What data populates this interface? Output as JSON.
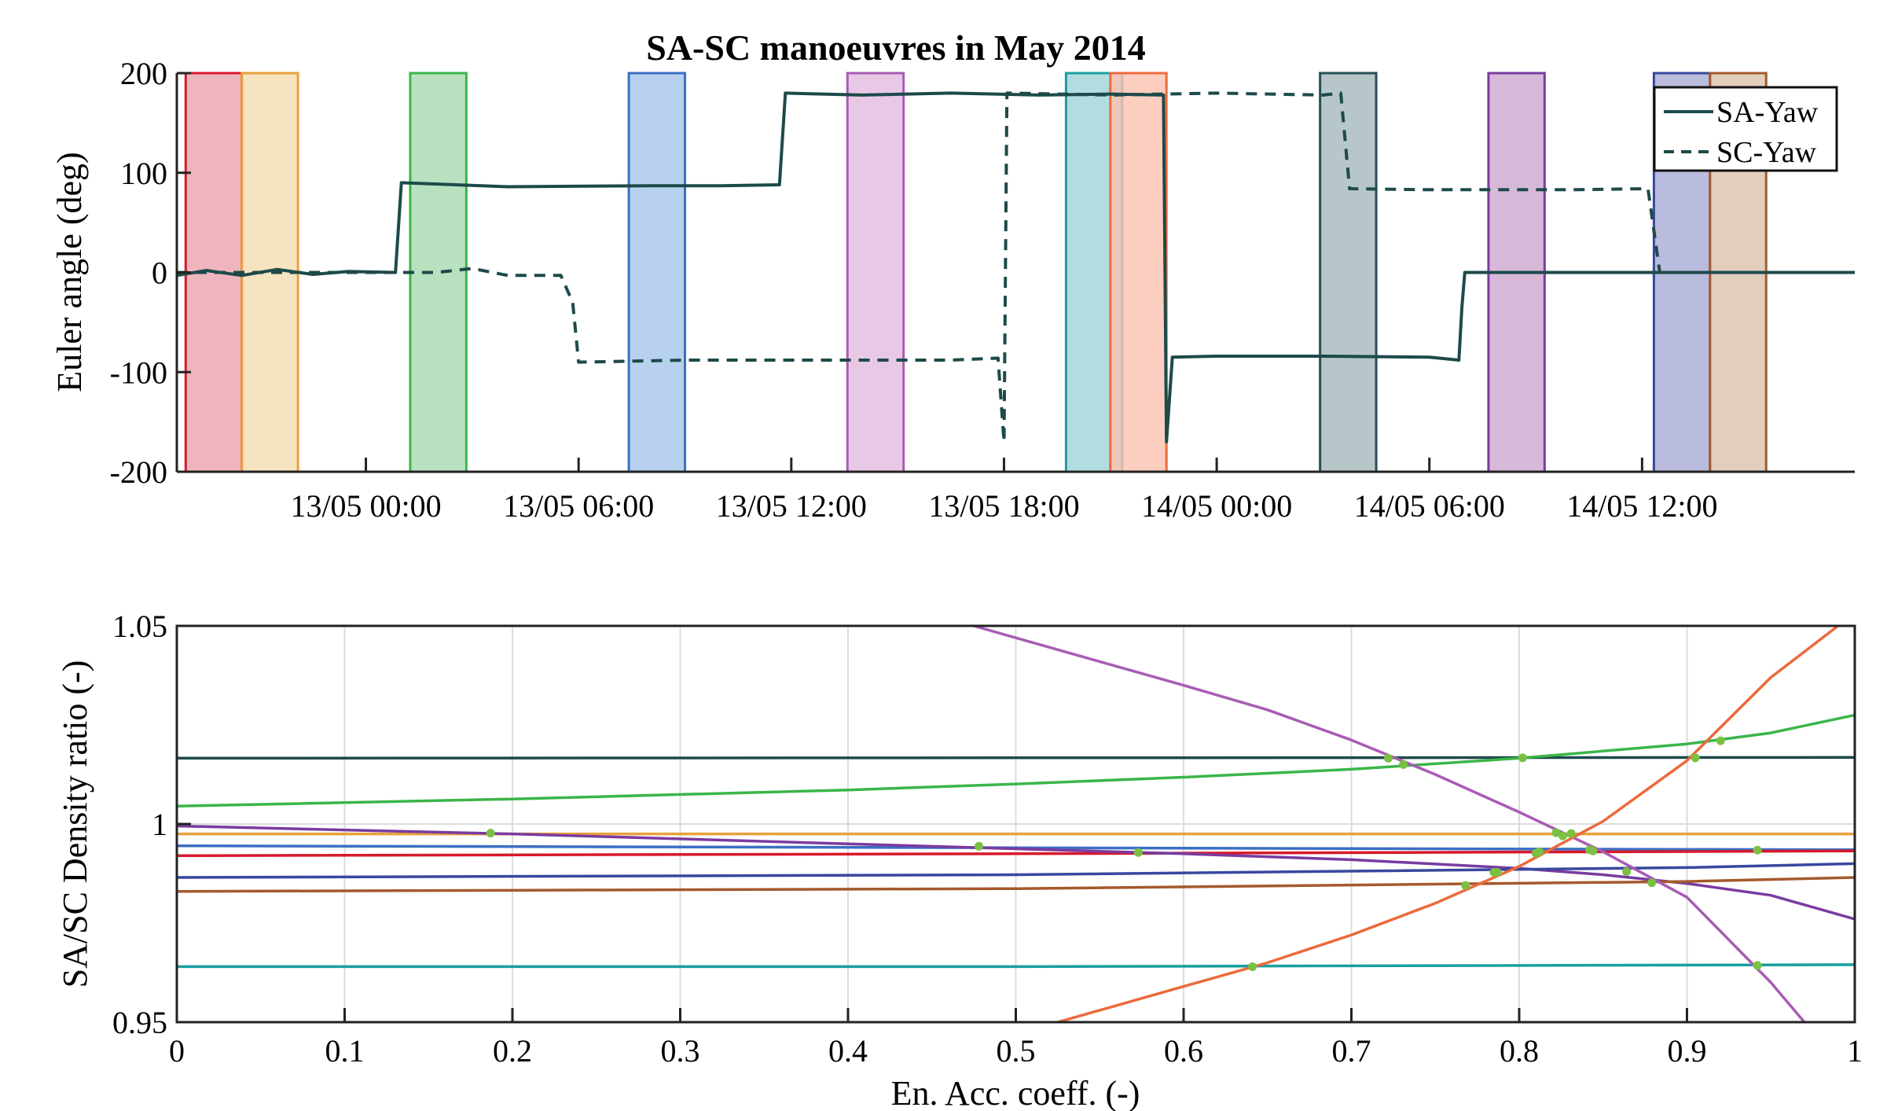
{
  "chart_data": [
    {
      "type": "line",
      "title": "SA-SC manoeuvres in May 2014",
      "xlabel": "",
      "ylabel": "Euler angle (deg)",
      "xlim": [
        "12/05 18:40",
        "14/05 18:00"
      ],
      "ylim": [
        -200,
        200
      ],
      "yticks": [
        -200,
        -100,
        0,
        100,
        200
      ],
      "xticks": [
        "13/05 00:00",
        "13/05 06:00",
        "13/05 12:00",
        "13/05 18:00",
        "14/05 00:00",
        "14/05 06:00",
        "14/05 12:00"
      ],
      "grid": false,
      "legend_position": "top-right",
      "legend": [
        "SA-Yaw",
        "SC-Yaw"
      ],
      "manoeuvre_windows": [
        {
          "start": "12/05 18:55",
          "end": "12/05 20:30",
          "color": "#d7192b",
          "fill": "#eaa2ae"
        },
        {
          "start": "12/05 20:30",
          "end": "12/05 22:05",
          "color": "#e8a23b",
          "fill": "#f4dcb0"
        },
        {
          "start": "13/05 01:15",
          "end": "13/05 02:50",
          "color": "#3bb54a",
          "fill": "#a8d9b0"
        },
        {
          "start": "13/05 07:25",
          "end": "13/05 09:00",
          "color": "#3d6fc4",
          "fill": "#a5c6ea"
        },
        {
          "start": "13/05 13:35",
          "end": "13/05 15:10",
          "color": "#a85cb4",
          "fill": "#e2bade"
        },
        {
          "start": "13/05 19:45",
          "end": "13/05 21:20",
          "color": "#1a9ea0",
          "fill": "#9fd5d8"
        },
        {
          "start": "13/05 21:00",
          "end": "13/05 22:35",
          "color": "#ec6a3c",
          "fill": "#fbc2b0"
        },
        {
          "start": "14/05 02:55",
          "end": "14/05 04:30",
          "color": "#274d55",
          "fill": "#a4b8bb"
        },
        {
          "start": "14/05 07:40",
          "end": "14/05 09:15",
          "color": "#7a3ba0",
          "fill": "#cda6cf"
        },
        {
          "start": "14/05 12:20",
          "end": "14/05 13:55",
          "color": "#39479e",
          "fill": "#a9abd5"
        },
        {
          "start": "14/05 13:55",
          "end": "14/05 15:30",
          "color": "#a45a2c",
          "fill": "#dcc1ad"
        }
      ],
      "series": [
        {
          "name": "SA-Yaw",
          "style": "solid",
          "color": "#1d4a4a",
          "x": [
            "12/05 18:40",
            "12/05 19:30",
            "12/05 20:30",
            "12/05 21:30",
            "12/05 22:30",
            "12/05 23:30",
            "13/05 00:50",
            "13/05 01:00",
            "13/05 04:00",
            "13/05 08:00",
            "13/05 10:00",
            "13/05 11:40",
            "13/05 11:50",
            "13/05 14:00",
            "13/05 16:30",
            "13/05 19:00",
            "13/05 21:00",
            "13/05 22:30",
            "13/05 22:35",
            "13/05 22:45",
            "14/05 00:00",
            "14/05 03:00",
            "14/05 06:00",
            "14/05 06:50",
            "14/05 06:55",
            "14/05 07:00",
            "14/05 09:00",
            "14/05 12:00",
            "14/05 15:00",
            "14/05 18:00"
          ],
          "y": [
            -3,
            2,
            -3,
            3,
            -2,
            1,
            0,
            90,
            86,
            87,
            87,
            88,
            180,
            178,
            180,
            178,
            179,
            178,
            -170,
            -85,
            -84,
            -84,
            -85,
            -88,
            -35,
            0,
            0,
            0,
            0,
            0
          ]
        },
        {
          "name": "SC-Yaw",
          "style": "dashed",
          "color": "#1d4a4a",
          "x": [
            "12/05 18:40",
            "12/05 20:30",
            "12/05 23:00",
            "13/05 00:30",
            "13/05 02:00",
            "13/05 03:00",
            "13/05 04:00",
            "13/05 05:30",
            "13/05 05:50",
            "13/05 06:00",
            "13/05 09:00",
            "13/05 12:00",
            "13/05 16:30",
            "13/05 17:50",
            "13/05 18:00",
            "13/05 18:05",
            "13/05 18:10",
            "13/05 21:00",
            "14/05 00:00",
            "14/05 03:00",
            "14/05 03:30",
            "14/05 03:45",
            "14/05 06:00",
            "14/05 10:00",
            "14/05 12:10",
            "14/05 12:30",
            "14/05 15:00",
            "14/05 18:00"
          ],
          "y": [
            0,
            0,
            0,
            0,
            0,
            4,
            -3,
            -3,
            -30,
            -90,
            -88,
            -88,
            -88,
            -86,
            -170,
            180,
            180,
            178,
            180,
            178,
            180,
            84,
            83,
            83,
            84,
            0,
            0,
            0
          ]
        }
      ]
    },
    {
      "type": "line",
      "title": "",
      "xlabel": "En. Acc. coeff. (-)",
      "ylabel": "SA/SC Density ratio (-)",
      "xlim": [
        0,
        1
      ],
      "ylim": [
        0.95,
        1.05
      ],
      "xticks": [
        0,
        0.1,
        0.2,
        0.3,
        0.4,
        0.5,
        0.6,
        0.7,
        0.8,
        0.9,
        1
      ],
      "xtick_labels": [
        "0",
        "0.1",
        "0.2",
        "0.3",
        "0.4",
        "0.5",
        "0.6",
        "0.7",
        "0.8",
        "0.9",
        "1"
      ],
      "yticks": [
        0.95,
        1,
        1.05
      ],
      "ytick_labels": [
        "0.95",
        "1",
        "1.05"
      ],
      "grid": true,
      "series": [
        {
          "color": "#1d4a4a",
          "x": [
            0,
            1
          ],
          "y": [
            1.0166,
            1.0168
          ]
        },
        {
          "color": "#3bb54a",
          "x": [
            0,
            0.2,
            0.4,
            0.5,
            0.6,
            0.7,
            0.8,
            0.9,
            0.95,
            1
          ],
          "y": [
            1.0045,
            1.0063,
            1.0086,
            1.0101,
            1.0118,
            1.0138,
            1.0166,
            1.0202,
            1.023,
            1.0275
          ]
        },
        {
          "color": "#e8a23b",
          "x": [
            0,
            1
          ],
          "y": [
            0.9975,
            0.9975
          ]
        },
        {
          "color": "#3d6fc4",
          "x": [
            0,
            0.5,
            1
          ],
          "y": [
            0.9945,
            0.994,
            0.9935
          ]
        },
        {
          "color": "#d7192b",
          "x": [
            0,
            0.5,
            1
          ],
          "y": [
            0.992,
            0.9925,
            0.9932
          ]
        },
        {
          "color": "#7a3ba0",
          "x": [
            0,
            0.2,
            0.4,
            0.6,
            0.7,
            0.8,
            0.85,
            0.9,
            0.95,
            1
          ],
          "y": [
            0.9995,
            0.9975,
            0.995,
            0.9925,
            0.991,
            0.9888,
            0.9872,
            0.985,
            0.982,
            0.976
          ]
        },
        {
          "color": "#39479e",
          "x": [
            0,
            0.5,
            0.9,
            1
          ],
          "y": [
            0.9865,
            0.9872,
            0.989,
            0.99
          ]
        },
        {
          "color": "#a45a2c",
          "x": [
            0,
            0.5,
            0.9,
            1
          ],
          "y": [
            0.983,
            0.9837,
            0.9855,
            0.9865
          ]
        },
        {
          "color": "#1a9ea0",
          "x": [
            0,
            0.5,
            1
          ],
          "y": [
            0.964,
            0.964,
            0.9645
          ]
        },
        {
          "color": "#a85cb4",
          "x": [
            0.475,
            0.55,
            0.6,
            0.65,
            0.7,
            0.75,
            0.8,
            0.85,
            0.9,
            0.95,
            0.97
          ],
          "y": [
            1.05,
            1.041,
            1.035,
            1.0288,
            1.0212,
            1.0125,
            1.003,
            0.993,
            0.9815,
            0.96,
            0.95
          ]
        },
        {
          "color": "#ec6a3c",
          "x": [
            0.525,
            0.6,
            0.65,
            0.7,
            0.75,
            0.8,
            0.85,
            0.9,
            0.95,
            0.99
          ],
          "y": [
            0.95,
            0.959,
            0.965,
            0.972,
            0.98,
            0.9893,
            1.0007,
            1.016,
            1.037,
            1.05
          ]
        }
      ],
      "intersection_points": {
        "color": "#7ac143",
        "x": [
          0.187,
          0.478,
          0.573,
          0.641,
          0.722,
          0.731,
          0.768,
          0.785,
          0.787,
          0.802,
          0.81,
          0.812,
          0.822,
          0.826,
          0.831,
          0.842,
          0.844,
          0.864,
          0.879,
          0.905,
          0.92,
          0.942,
          0.942
        ],
        "y": [
          0.9977,
          0.9944,
          0.9928,
          0.964,
          1.0166,
          1.015,
          0.9845,
          0.9878,
          0.9878,
          1.0167,
          0.9926,
          0.993,
          0.9978,
          0.997,
          0.9976,
          0.9935,
          0.9932,
          0.988,
          0.9852,
          1.0167,
          1.021,
          0.9643,
          0.9934
        ]
      }
    }
  ]
}
